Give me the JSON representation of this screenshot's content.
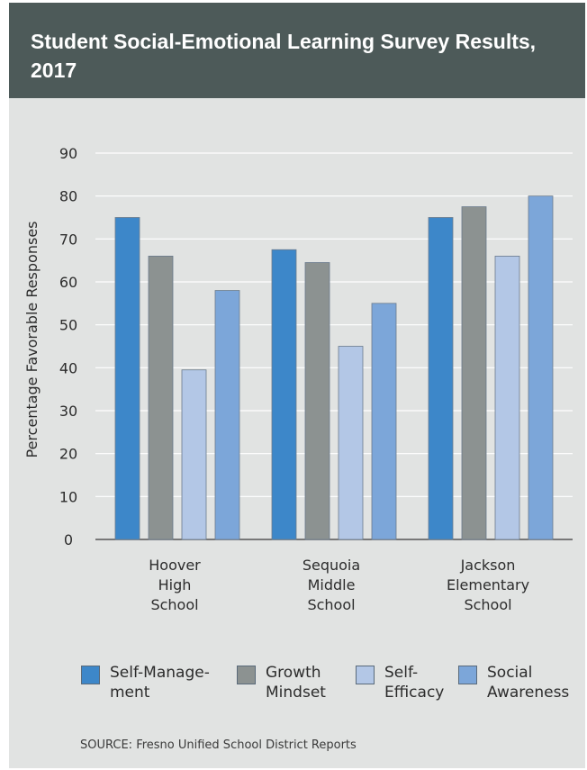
{
  "title": "Student Social-Emotional Learning Survey Results, 2017",
  "source": "SOURCE: Fresno Unified School District Reports",
  "colors": {
    "header_bg": "#4d5a59",
    "panel_bg": "#e1e3e2",
    "self_management": "#3d87c9",
    "growth_mindset": "#8c9291",
    "self_efficacy": "#b3c7e6",
    "social_awareness": "#7ca6d9"
  },
  "chart_data": {
    "type": "bar",
    "ylabel": "Percentage Favorable Responses",
    "ylim": [
      0,
      90
    ],
    "yticks": [
      0,
      10,
      20,
      30,
      40,
      50,
      60,
      70,
      80,
      90
    ],
    "grid": true,
    "legend_position": "bottom",
    "categories": [
      [
        "Hoover",
        "High",
        "School"
      ],
      [
        "Sequoia",
        "Middle",
        "School"
      ],
      [
        "Jackson",
        "Elementary",
        "School"
      ]
    ],
    "series": [
      {
        "name": "Self-Manage-\nment",
        "color": "#3d87c9",
        "values": [
          75,
          67.5,
          75
        ]
      },
      {
        "name": "Growth\nMindset",
        "color": "#8c9291",
        "values": [
          66,
          64.5,
          77.5
        ]
      },
      {
        "name": "Self-\nEfficacy",
        "color": "#b3c7e6",
        "values": [
          39.5,
          45,
          66
        ]
      },
      {
        "name": "Social\nAwareness",
        "color": "#7ca6d9",
        "values": [
          58,
          55,
          80
        ]
      }
    ]
  }
}
